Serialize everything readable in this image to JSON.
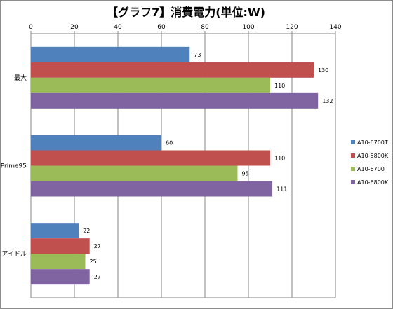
{
  "chart_data": {
    "type": "bar",
    "orientation": "horizontal",
    "title": "【グラフ7】消費電力(単位:W)",
    "xlabel": "",
    "ylabel": "",
    "xlim": [
      0,
      140
    ],
    "ticks": [
      0,
      20,
      40,
      60,
      80,
      100,
      120,
      140
    ],
    "x_axis_position": "top",
    "grid": true,
    "legend_position": "right",
    "categories": [
      "最大",
      "Prime95",
      "アイドル"
    ],
    "series": [
      {
        "name": "A10-6700T",
        "color": "#4F81BD",
        "values": [
          73,
          60,
          22
        ]
      },
      {
        "name": "A10-5800K",
        "color": "#C0504D",
        "values": [
          130,
          110,
          27
        ]
      },
      {
        "name": "A10-6700",
        "color": "#9BBB59",
        "values": [
          110,
          95,
          25
        ]
      },
      {
        "name": "A10-6800K",
        "color": "#8064A2",
        "values": [
          132,
          111,
          27
        ]
      }
    ]
  }
}
